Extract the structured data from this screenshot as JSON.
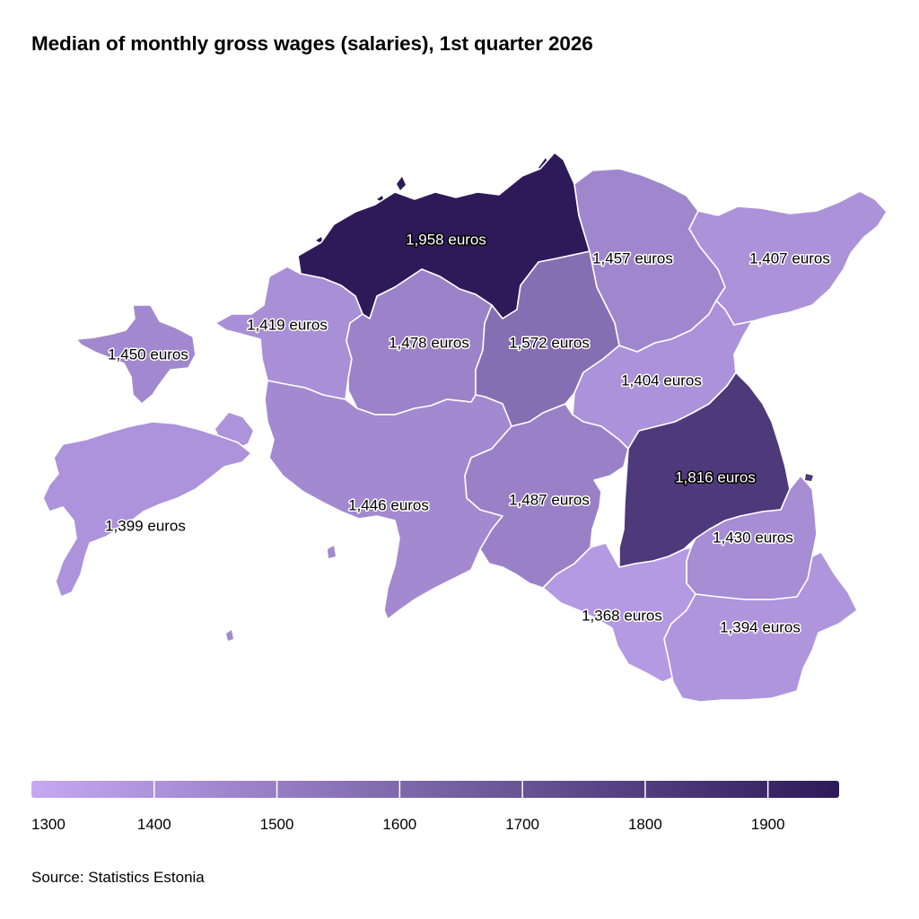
{
  "title": "Median of monthly gross wages (salaries), 1st quarter 2026",
  "source": "Source: Statistics Estonia",
  "colors": {
    "scale_min": "#c4a9f2",
    "scale_max": "#2e1a59",
    "label_light": "#ffffff",
    "label_dark": "#000000",
    "border": "#ffffff"
  },
  "chart_data": {
    "type": "choropleth",
    "unit": "euros",
    "color_domain": [
      1300,
      1958
    ],
    "regions": [
      {
        "label": "1,958 euros",
        "value": 1958
      },
      {
        "label": "1,457 euros",
        "value": 1457
      },
      {
        "label": "1,407 euros",
        "value": 1407
      },
      {
        "label": "1,419 euros",
        "value": 1419
      },
      {
        "label": "1,450 euros",
        "value": 1450
      },
      {
        "label": "1,478 euros",
        "value": 1478
      },
      {
        "label": "1,572 euros",
        "value": 1572
      },
      {
        "label": "1,404 euros",
        "value": 1404
      },
      {
        "label": "1,399 euros",
        "value": 1399
      },
      {
        "label": "1,446 euros",
        "value": 1446
      },
      {
        "label": "1,487 euros",
        "value": 1487
      },
      {
        "label": "1,816 euros",
        "value": 1816
      },
      {
        "label": "1,430 euros",
        "value": 1430
      },
      {
        "label": "1,368 euros",
        "value": 1368
      },
      {
        "label": "1,394 euros",
        "value": 1394
      }
    ],
    "legend": {
      "type": "continuous",
      "range": [
        1300,
        1958
      ],
      "ticks": [
        {
          "label": "1300",
          "value": 1300
        },
        {
          "label": "1400",
          "value": 1400
        },
        {
          "label": "1500",
          "value": 1500
        },
        {
          "label": "1600",
          "value": 1600
        },
        {
          "label": "1700",
          "value": 1700
        },
        {
          "label": "1800",
          "value": 1800
        },
        {
          "label": "1900",
          "value": 1900
        }
      ]
    }
  }
}
